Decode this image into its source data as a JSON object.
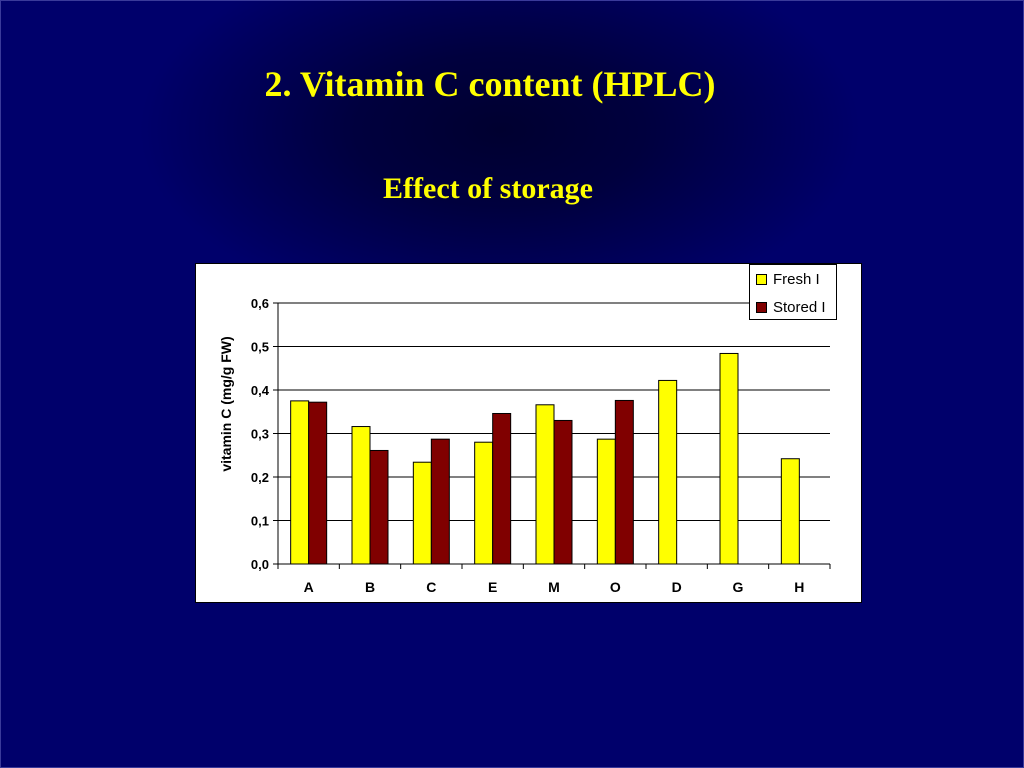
{
  "slide": {
    "title": "2. Vitamin C content (HPLC)",
    "subtitle": "Effect of storage",
    "background_color": "#00006b",
    "text_color": "#ffff00"
  },
  "chart_data": {
    "type": "bar",
    "categories": [
      "A",
      "B",
      "C",
      "E",
      "M",
      "O",
      "D",
      "G",
      "H"
    ],
    "series": [
      {
        "name": "Fresh I",
        "color": "#ffff00",
        "values": [
          0.375,
          0.316,
          0.234,
          0.28,
          0.366,
          0.287,
          0.422,
          0.484,
          0.242
        ]
      },
      {
        "name": "Stored I",
        "color": "#800000",
        "values": [
          0.372,
          0.261,
          0.287,
          0.346,
          0.33,
          0.376,
          null,
          null,
          null
        ]
      }
    ],
    "title": "",
    "xlabel": "",
    "ylabel": "vitamin C (mg/g FW)",
    "ylim": [
      0,
      0.6
    ],
    "yticks": [
      "0,0",
      "0,1",
      "0,2",
      "0,3",
      "0,4",
      "0,5",
      "0,6"
    ],
    "grid": true,
    "legend_position": "top-right"
  }
}
